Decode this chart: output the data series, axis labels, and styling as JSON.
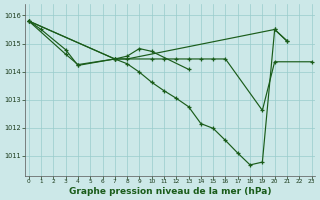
{
  "background_color": "#cce8e8",
  "grid_color": "#99cccc",
  "line_color": "#1a5c1a",
  "xlabel": "Graphe pression niveau de la mer (hPa)",
  "ylim": [
    1010.3,
    1016.4
  ],
  "xlim": [
    -0.3,
    23.3
  ],
  "yticks": [
    1011,
    1012,
    1013,
    1014,
    1015,
    1016
  ],
  "xticks": [
    0,
    1,
    2,
    3,
    4,
    5,
    6,
    7,
    8,
    9,
    10,
    11,
    12,
    13,
    14,
    15,
    16,
    17,
    18,
    19,
    20,
    21,
    22,
    23
  ],
  "series1_x": [
    0,
    1,
    3,
    4,
    7,
    8,
    20,
    21
  ],
  "series1_y": [
    1015.8,
    1015.5,
    1014.78,
    1014.22,
    1014.45,
    1014.45,
    1015.5,
    1015.1
  ],
  "series2_x": [
    0,
    3,
    4,
    7,
    8,
    9,
    10,
    13
  ],
  "series2_y": [
    1015.8,
    1014.62,
    1014.25,
    1014.45,
    1014.55,
    1014.82,
    1014.72,
    1014.08
  ],
  "series3_x": [
    0,
    7,
    10,
    11,
    12,
    13,
    14,
    15,
    16,
    19,
    20,
    23
  ],
  "series3_y": [
    1015.8,
    1014.45,
    1014.45,
    1014.45,
    1014.45,
    1014.45,
    1014.45,
    1014.45,
    1014.45,
    1012.62,
    1014.35,
    1014.35
  ],
  "series4_x": [
    0,
    7,
    8,
    9,
    10,
    11,
    12,
    13,
    14,
    15,
    16,
    17,
    18,
    19,
    20,
    21
  ],
  "series4_y": [
    1015.8,
    1014.45,
    1014.28,
    1013.98,
    1013.62,
    1013.32,
    1013.05,
    1012.75,
    1012.15,
    1011.98,
    1011.55,
    1011.1,
    1010.68,
    1010.78,
    1015.5,
    1015.08
  ]
}
